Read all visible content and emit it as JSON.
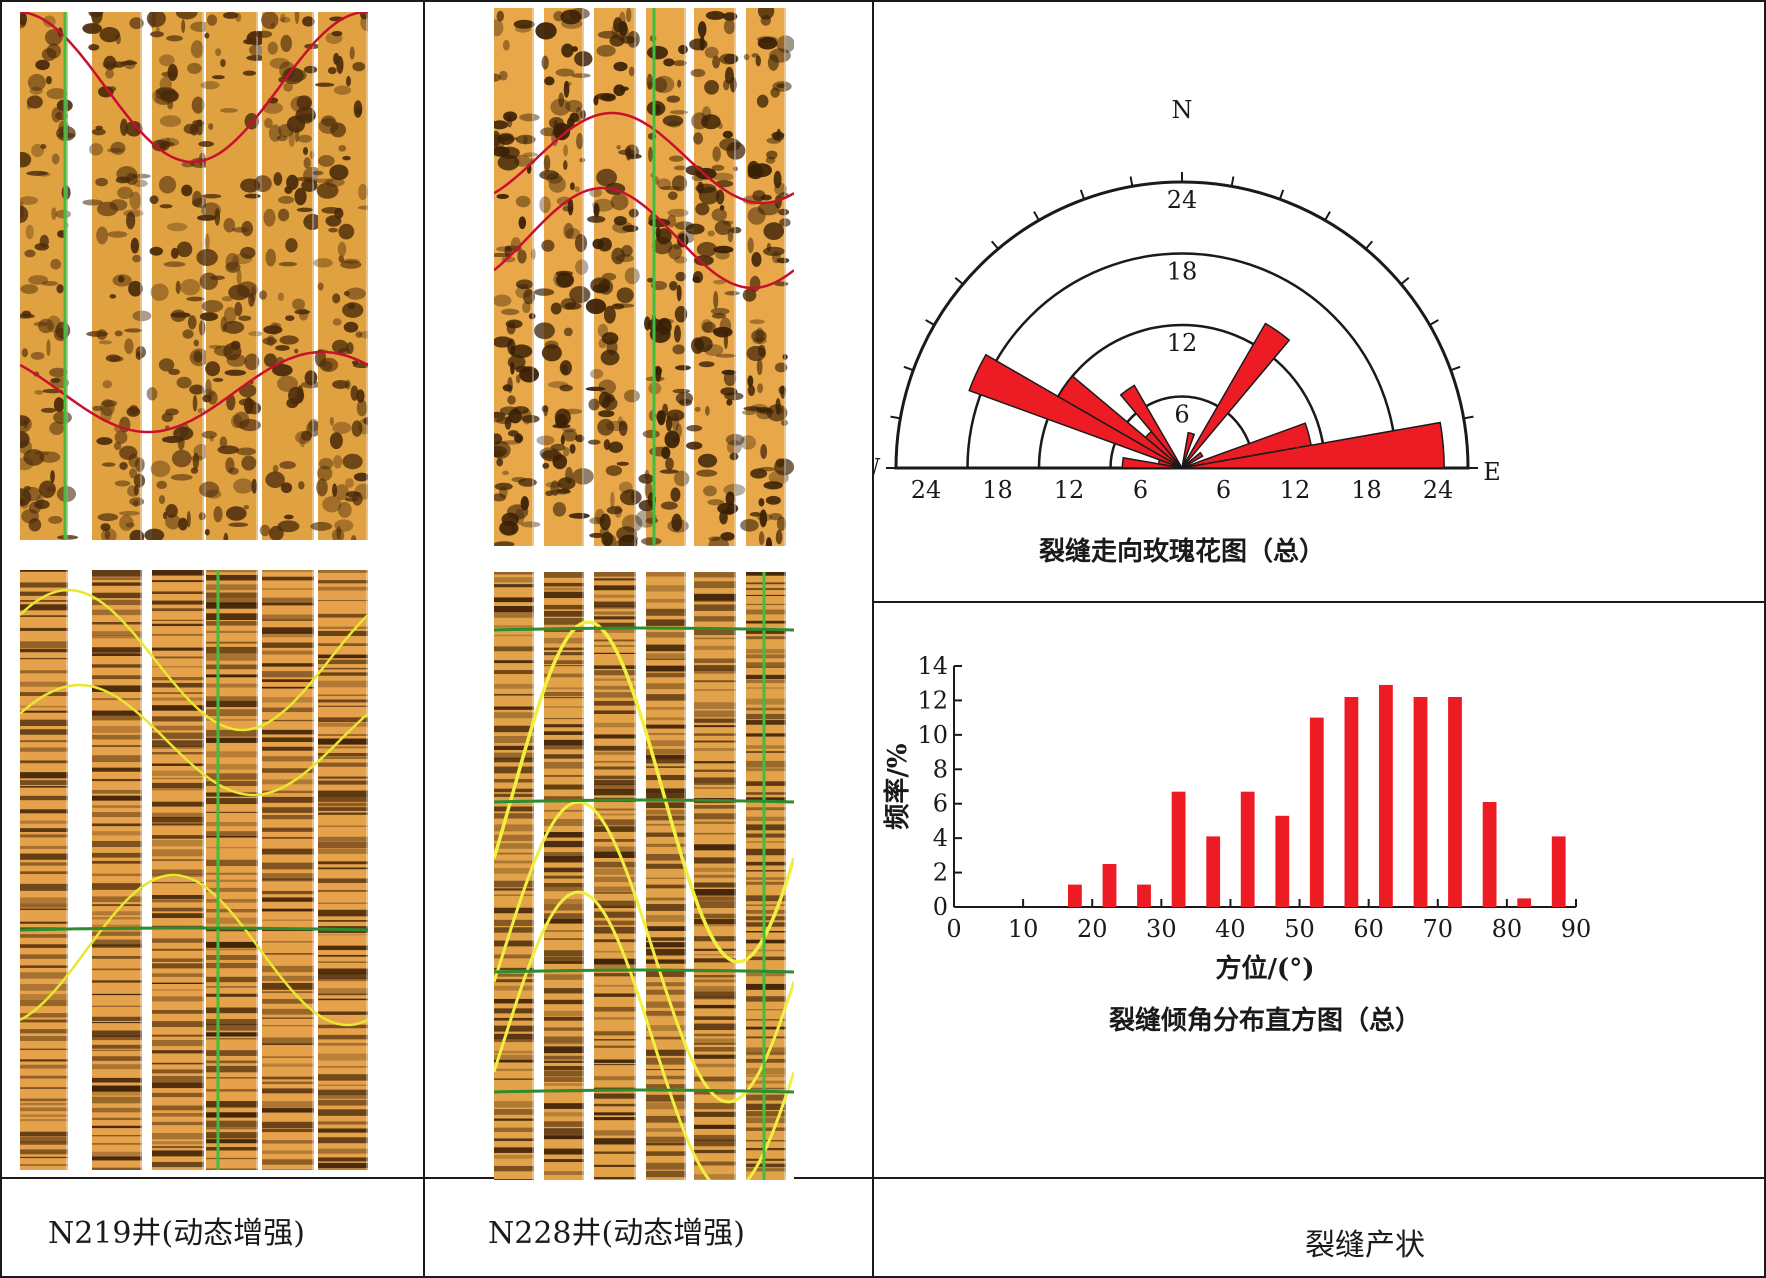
{
  "panels": [
    {
      "label": "N219井(动态增强)"
    },
    {
      "label": "N228井(动态增强)"
    },
    {
      "label": "裂缝产状"
    }
  ],
  "chart_data": [
    {
      "type": "rose",
      "title": "裂缝走向玫瑰花图（总）",
      "directions": {
        "north": "N",
        "west": "W",
        "east": "E"
      },
      "rings": [
        6,
        12,
        18,
        24
      ],
      "axis_tick_labels": [
        "24",
        "18",
        "12",
        "6",
        "6",
        "12",
        "18",
        "24"
      ],
      "bin_width_deg": 10,
      "bins": [
        {
          "azimuth_start": 0,
          "azimuth_end": 10,
          "value": 0
        },
        {
          "azimuth_start": 10,
          "azimuth_end": 20,
          "value": 3
        },
        {
          "azimuth_start": 20,
          "azimuth_end": 30,
          "value": 0
        },
        {
          "azimuth_start": 30,
          "azimuth_end": 40,
          "value": 14
        },
        {
          "azimuth_start": 40,
          "azimuth_end": 50,
          "value": 0
        },
        {
          "azimuth_start": 50,
          "azimuth_end": 60,
          "value": 2
        },
        {
          "azimuth_start": 60,
          "azimuth_end": 70,
          "value": 0
        },
        {
          "azimuth_start": 70,
          "azimuth_end": 80,
          "value": 11
        },
        {
          "azimuth_start": 80,
          "azimuth_end": 90,
          "value": 22
        },
        {
          "azimuth_start": 270,
          "azimuth_end": 280,
          "value": 5
        },
        {
          "azimuth_start": 280,
          "azimuth_end": 290,
          "value": 2
        },
        {
          "azimuth_start": 290,
          "azimuth_end": 300,
          "value": 19
        },
        {
          "azimuth_start": 300,
          "azimuth_end": 310,
          "value": 12
        },
        {
          "azimuth_start": 310,
          "azimuth_end": 320,
          "value": 4
        },
        {
          "azimuth_start": 320,
          "azimuth_end": 330,
          "value": 8
        },
        {
          "azimuth_start": 330,
          "azimuth_end": 340,
          "value": 0
        },
        {
          "azimuth_start": 340,
          "azimuth_end": 350,
          "value": 0
        },
        {
          "azimuth_start": 350,
          "azimuth_end": 360,
          "value": 0
        }
      ],
      "color": "#ed1c24"
    },
    {
      "type": "bar",
      "title": "裂缝倾角分布直方图（总）",
      "xlabel": "方位/(°)",
      "ylabel": "频率/%",
      "xlim": [
        0,
        90
      ],
      "ylim": [
        0,
        14
      ],
      "xticks": [
        0,
        10,
        20,
        30,
        40,
        50,
        60,
        70,
        80,
        90
      ],
      "yticks": [
        0,
        2,
        4,
        6,
        8,
        10,
        12,
        14
      ],
      "bin_width": 5,
      "x": [
        17.5,
        22.5,
        27.5,
        32.5,
        37.5,
        42.5,
        47.5,
        52.5,
        57.5,
        62.5,
        67.5,
        72.5,
        77.5,
        82.5,
        87.5
      ],
      "values": [
        1.3,
        2.5,
        1.3,
        6.7,
        4.1,
        6.7,
        5.3,
        11.0,
        12.2,
        12.9,
        12.2,
        12.2,
        6.1,
        0.5,
        4.1
      ],
      "color": "#ed1c24"
    }
  ]
}
